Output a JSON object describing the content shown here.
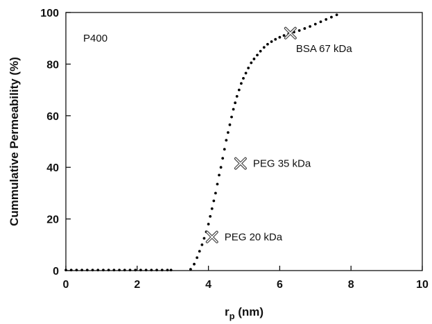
{
  "chart_data": {
    "type": "scatter",
    "title": "",
    "xlabel_main": "r",
    "xlabel_sub": "p",
    "xlabel_unit": " (nm)",
    "ylabel": "Cummulative Permeability (%)",
    "xlim": [
      0,
      10
    ],
    "ylim": [
      0,
      100
    ],
    "xticks": [
      "0",
      "2",
      "4",
      "6",
      "8",
      "10"
    ],
    "yticks": [
      "0",
      "20",
      "40",
      "60",
      "80",
      "100"
    ],
    "grid": false,
    "legend": "none",
    "series": [
      {
        "marker": "dot",
        "color": "#000000",
        "x": [
          0.0,
          0.15,
          0.3,
          0.45,
          0.6,
          0.75,
          0.9,
          1.05,
          1.2,
          1.35,
          1.5,
          1.65,
          1.8,
          1.95,
          2.1,
          2.25,
          2.4,
          2.55,
          2.7,
          2.85,
          2.95,
          3.5,
          3.6,
          3.68,
          3.75,
          3.82,
          3.88,
          3.94,
          4.0,
          4.05,
          4.1,
          4.15,
          4.2,
          4.25,
          4.3,
          4.35,
          4.4,
          4.45,
          4.5,
          4.55,
          4.6,
          4.65,
          4.7,
          4.75,
          4.8,
          4.86,
          4.92,
          4.98,
          5.05,
          5.12,
          5.2,
          5.28,
          5.37,
          5.46,
          5.56,
          5.66,
          5.77,
          5.88,
          6.0,
          6.12,
          6.25,
          6.4,
          6.55,
          6.7,
          6.85,
          7.0,
          7.15,
          7.3,
          7.45,
          7.6
        ],
        "y": [
          0.2,
          0.2,
          0.2,
          0.2,
          0.2,
          0.2,
          0.2,
          0.2,
          0.2,
          0.2,
          0.2,
          0.2,
          0.2,
          0.2,
          0.2,
          0.2,
          0.2,
          0.2,
          0.2,
          0.2,
          0.2,
          0.5,
          2.5,
          5,
          7.5,
          10,
          12.5,
          15,
          18,
          21,
          24,
          27,
          30,
          33.5,
          37,
          40,
          43.5,
          47,
          50.5,
          53.5,
          56.5,
          59.5,
          62.5,
          65,
          67.5,
          70,
          72.5,
          74.5,
          76.5,
          78.5,
          80.5,
          82,
          83.5,
          85,
          86.5,
          87.7,
          88.7,
          89.6,
          90.4,
          91.1,
          91.7,
          92.4,
          93.0,
          93.8,
          94.6,
          95.5,
          96.4,
          97.3,
          98.2,
          99.1
        ]
      }
    ],
    "annotations": [
      {
        "x": 6.3,
        "y": 92,
        "label": "BSA 67 kDa",
        "marker": "x"
      },
      {
        "x": 4.9,
        "y": 41.5,
        "label": "PEG 35 kDa",
        "marker": "x"
      },
      {
        "x": 4.1,
        "y": 13,
        "label": "PEG 20 kDa",
        "marker": "x"
      }
    ],
    "inset_label": "P400"
  }
}
